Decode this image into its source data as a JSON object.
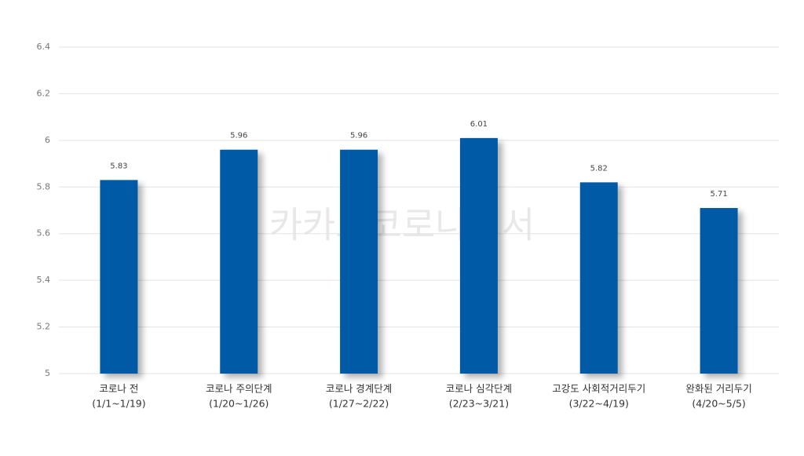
{
  "chart_data": {
    "type": "bar",
    "watermark": "카카오코로나백서",
    "categories": [
      [
        "코로나 전",
        "(1/1~1/19)"
      ],
      [
        "코로나 주의단계",
        "(1/20~1/26)"
      ],
      [
        "코로나 경계단계",
        "(1/27~2/22)"
      ],
      [
        "코로나 심각단계",
        "(2/23~3/21)"
      ],
      [
        "고강도 사회적거리두기",
        "(3/22~4/19)"
      ],
      [
        "완화된 거리두기",
        "(4/20~5/5)"
      ]
    ],
    "values": [
      5.83,
      5.96,
      5.96,
      6.01,
      5.82,
      5.71
    ],
    "color": "#005aa6",
    "ylim": [
      5,
      6.4
    ],
    "yticks": [
      5,
      5.2,
      5.4,
      5.6,
      5.8,
      6,
      6.2,
      6.4
    ],
    "grid": true
  }
}
